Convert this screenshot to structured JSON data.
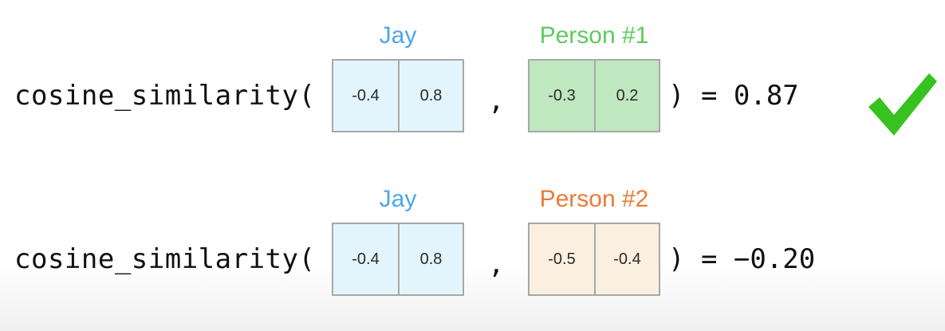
{
  "rows": [
    {
      "function": "cosine_similarity(",
      "open_paren": "(",
      "comma": ",",
      "close_and_result": ") = 0.87",
      "vector_a": {
        "label": "Jay",
        "values": [
          "-0.4",
          "0.8"
        ],
        "label_color": "#4aa8e8",
        "fill_color": "#e2f5fc",
        "border_color": "#a8a8a8"
      },
      "vector_b": {
        "label": "Person #1",
        "values": [
          "-0.3",
          "0.2"
        ],
        "label_color": "#5ecb5e",
        "fill_color": "#bfe8c1",
        "border_color": "#a8a8a8"
      },
      "indicator": "check-icon",
      "indicator_color": "#37c21f"
    },
    {
      "function": "cosine_similarity(",
      "open_paren": "(",
      "comma": ",",
      "close_and_result": ") = −0.20",
      "vector_a": {
        "label": "Jay",
        "values": [
          "-0.4",
          "0.8"
        ],
        "label_color": "#4aa8e8",
        "fill_color": "#e2f5fc",
        "border_color": "#a8a8a8"
      },
      "vector_b": {
        "label": "Person #2",
        "values": [
          "-0.5",
          "-0.4"
        ],
        "label_color": "#ec7a36",
        "fill_color": "#fbefe0",
        "border_color": "#a8a8a8"
      }
    }
  ]
}
